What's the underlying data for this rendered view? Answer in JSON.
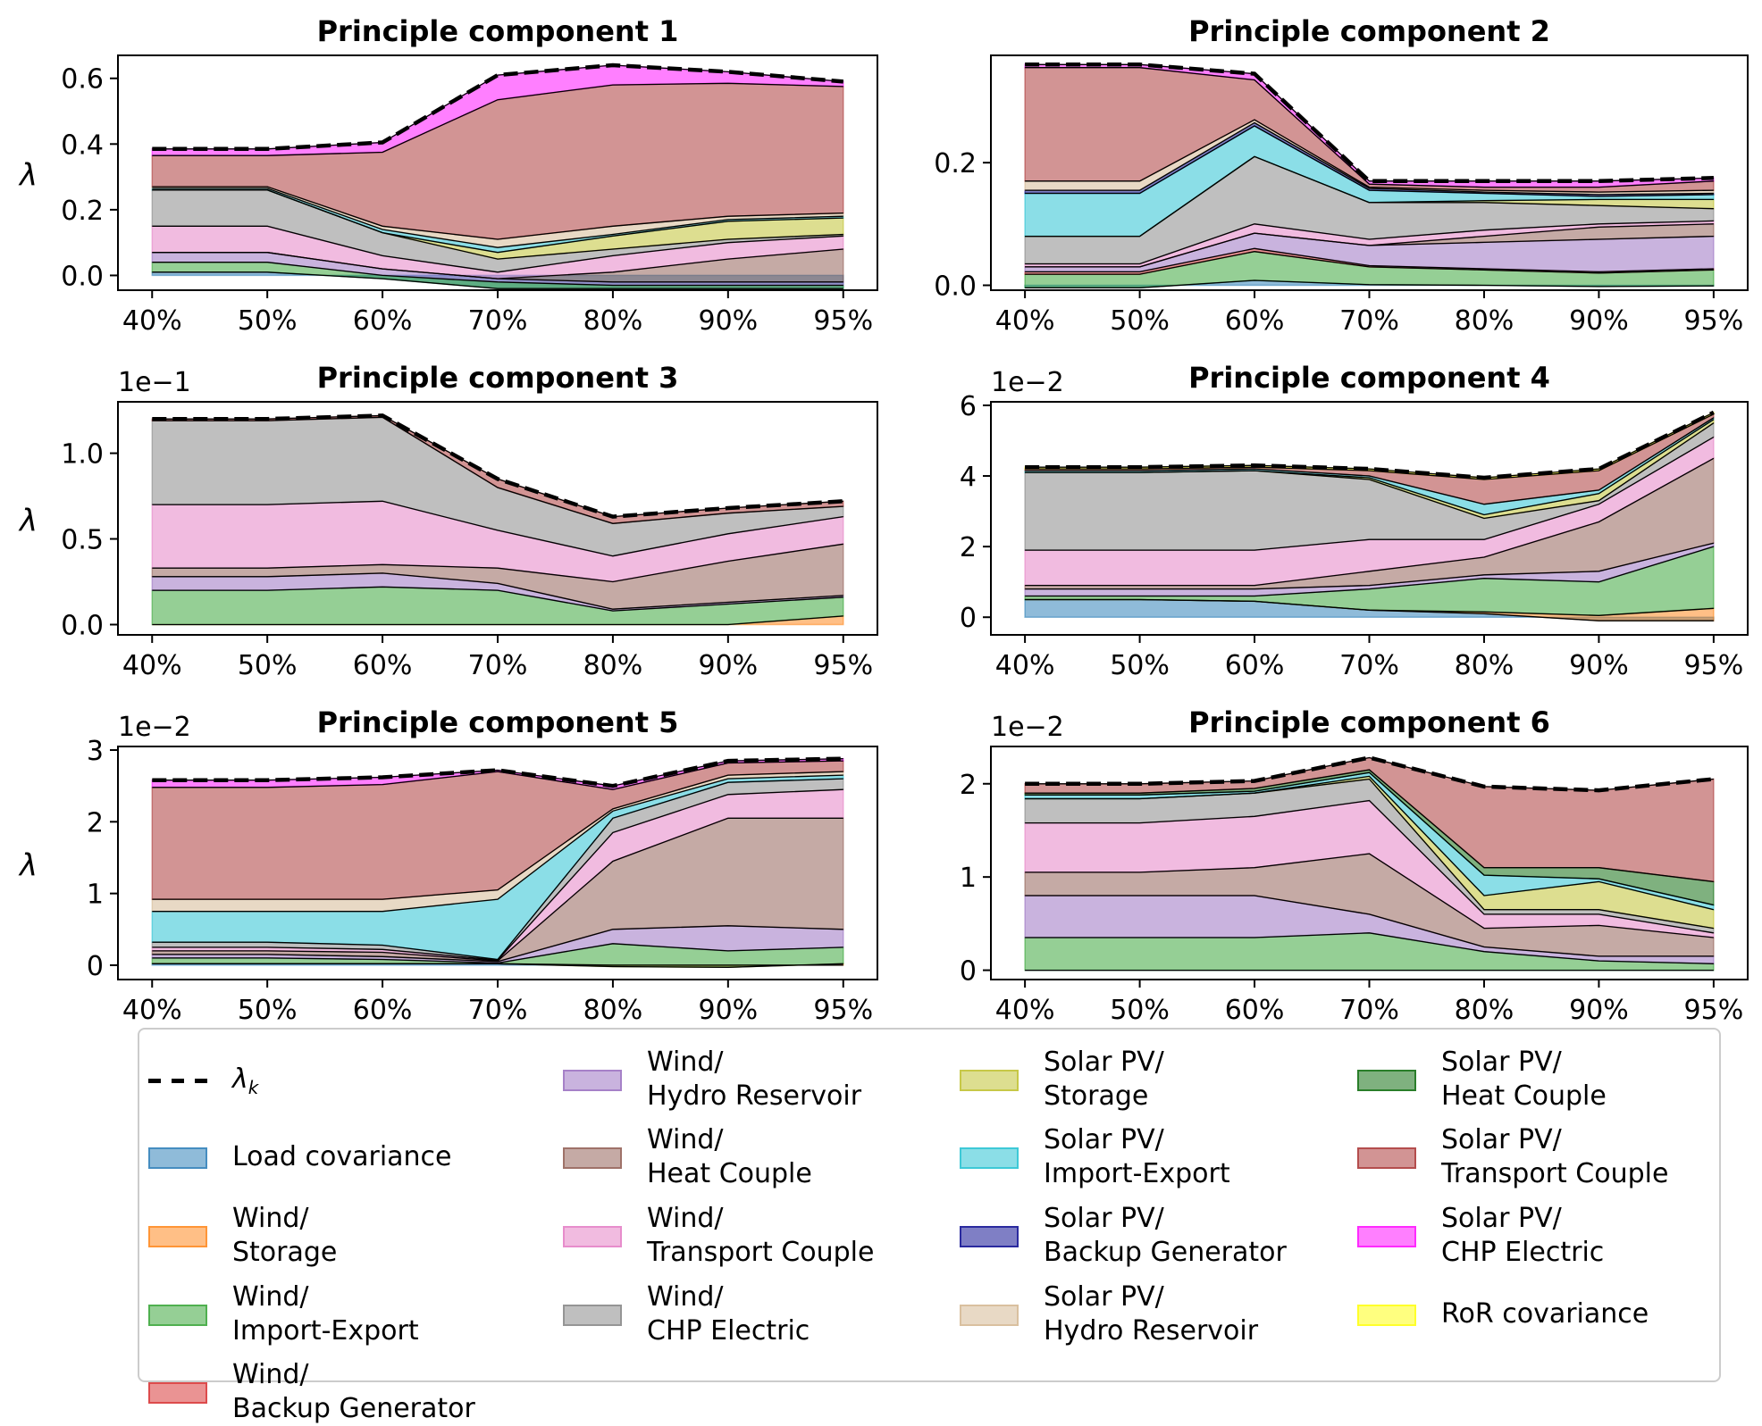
{
  "chart_data": [
    {
      "type": "area",
      "title": "Principle component 1",
      "ylabel": "λ",
      "offset_text": "",
      "categories": [
        "40%",
        "50%",
        "60%",
        "70%",
        "80%",
        "90%",
        "95%"
      ],
      "ylim": [
        -0.045,
        0.67
      ],
      "yticks": [
        0.0,
        0.2,
        0.4,
        0.6
      ],
      "ytick_labels": [
        "0.0",
        "0.2",
        "0.4",
        "0.6"
      ],
      "total": [
        0.385,
        0.385,
        0.405,
        0.61,
        0.64,
        0.62,
        0.59
      ],
      "boundaries": [
        {
          "series": "Load covariance",
          "values": [
            0.01,
            0.01,
            -0.01,
            -0.04,
            -0.04,
            -0.04,
            -0.04
          ]
        },
        {
          "series": "Wind/\nImport-Export",
          "values": [
            0.04,
            0.04,
            0.0,
            -0.02,
            -0.03,
            -0.03,
            -0.03
          ]
        },
        {
          "series": "Wind/\nHydro Reservoir",
          "values": [
            0.07,
            0.07,
            0.02,
            -0.01,
            -0.02,
            -0.02,
            -0.02
          ]
        },
        {
          "series": "Wind/\nHeat Couple",
          "values": [
            0.07,
            0.07,
            0.02,
            -0.01,
            0.01,
            0.05,
            0.08
          ]
        },
        {
          "series": "Wind/\nTransport Couple",
          "values": [
            0.15,
            0.15,
            0.06,
            0.01,
            0.06,
            0.1,
            0.12
          ]
        },
        {
          "series": "Wind/\nCHP Electric",
          "values": [
            0.26,
            0.26,
            0.13,
            0.05,
            0.08,
            0.11,
            0.125
          ]
        },
        {
          "series": "Solar PV/\nStorage",
          "values": [
            0.26,
            0.26,
            0.13,
            0.07,
            0.12,
            0.165,
            0.175
          ]
        },
        {
          "series": "Solar PV/\nImport-Export",
          "values": [
            0.265,
            0.265,
            0.14,
            0.085,
            0.125,
            0.17,
            0.18
          ]
        },
        {
          "series": "Solar PV/\nHydro Reservoir",
          "values": [
            0.27,
            0.27,
            0.15,
            0.11,
            0.15,
            0.18,
            0.19
          ]
        },
        {
          "series": "Solar PV/\nTransport Couple",
          "values": [
            0.365,
            0.365,
            0.375,
            0.535,
            0.58,
            0.585,
            0.575
          ]
        },
        {
          "series": "Solar PV/\nCHP Electric",
          "values": [
            0.385,
            0.385,
            0.405,
            0.61,
            0.64,
            0.62,
            0.59
          ]
        }
      ]
    },
    {
      "type": "area",
      "title": "Principle component 2",
      "ylabel": "",
      "offset_text": "",
      "categories": [
        "40%",
        "50%",
        "60%",
        "70%",
        "80%",
        "90%",
        "95%"
      ],
      "ylim": [
        -0.008,
        0.375
      ],
      "yticks": [
        0.0,
        0.2
      ],
      "ytick_labels": [
        "0.0",
        "0.2"
      ],
      "total": [
        0.36,
        0.36,
        0.345,
        0.17,
        0.17,
        0.17,
        0.175
      ],
      "boundaries": [
        {
          "series": "Load covariance",
          "values": [
            -0.004,
            -0.004,
            0.008,
            0.001,
            0.0,
            -0.002,
            -0.001
          ]
        },
        {
          "series": "Wind/\nImport-Export",
          "values": [
            0.018,
            0.018,
            0.055,
            0.03,
            0.025,
            0.02,
            0.025
          ]
        },
        {
          "series": "Wind/\nBackup Generator",
          "values": [
            0.022,
            0.022,
            0.06,
            0.032,
            0.027,
            0.022,
            0.027
          ]
        },
        {
          "series": "Wind/\nHydro Reservoir",
          "values": [
            0.03,
            0.03,
            0.085,
            0.065,
            0.07,
            0.075,
            0.08
          ]
        },
        {
          "series": "Wind/\nHeat Couple",
          "values": [
            0.03,
            0.03,
            0.085,
            0.065,
            0.08,
            0.095,
            0.1
          ]
        },
        {
          "series": "Wind/\nTransport Couple",
          "values": [
            0.035,
            0.035,
            0.1,
            0.075,
            0.09,
            0.1,
            0.105
          ]
        },
        {
          "series": "Wind/\nCHP Electric",
          "values": [
            0.08,
            0.08,
            0.21,
            0.135,
            0.135,
            0.13,
            0.125
          ]
        },
        {
          "series": "Solar PV/\nStorage",
          "values": [
            0.08,
            0.08,
            0.21,
            0.135,
            0.138,
            0.14,
            0.14
          ]
        },
        {
          "series": "Solar PV/\nImport-Export",
          "values": [
            0.15,
            0.15,
            0.26,
            0.155,
            0.15,
            0.145,
            0.148
          ]
        },
        {
          "series": "Solar PV/\nBackup Generator",
          "values": [
            0.155,
            0.155,
            0.265,
            0.158,
            0.152,
            0.148,
            0.15
          ]
        },
        {
          "series": "Solar PV/\nHydro Reservoir",
          "values": [
            0.17,
            0.17,
            0.27,
            0.16,
            0.155,
            0.152,
            0.155
          ]
        },
        {
          "series": "Solar PV/\nTransport Couple",
          "values": [
            0.355,
            0.355,
            0.335,
            0.165,
            0.16,
            0.16,
            0.17
          ]
        },
        {
          "series": "Solar PV/\nCHP Electric",
          "values": [
            0.36,
            0.36,
            0.345,
            0.17,
            0.17,
            0.17,
            0.175
          ]
        }
      ]
    },
    {
      "type": "area",
      "title": "Principle component 3",
      "ylabel": "λ",
      "offset_text": "1e−1",
      "categories": [
        "40%",
        "50%",
        "60%",
        "70%",
        "80%",
        "90%",
        "95%"
      ],
      "ylim": [
        -0.06,
        1.3
      ],
      "yticks": [
        0.0,
        0.5,
        1.0
      ],
      "ytick_labels": [
        "0.0",
        "0.5",
        "1.0"
      ],
      "total": [
        1.2,
        1.2,
        1.22,
        0.85,
        0.63,
        0.68,
        0.72
      ],
      "boundaries": [
        {
          "series": "Wind/\nStorage",
          "values": [
            0.0,
            0.0,
            0.0,
            0.0,
            0.0,
            0.0,
            0.05
          ]
        },
        {
          "series": "Wind/\nImport-Export",
          "values": [
            0.2,
            0.2,
            0.22,
            0.2,
            0.08,
            0.12,
            0.16
          ]
        },
        {
          "series": "Wind/\nHydro Reservoir",
          "values": [
            0.28,
            0.28,
            0.3,
            0.24,
            0.09,
            0.13,
            0.17
          ]
        },
        {
          "series": "Wind/\nHeat Couple",
          "values": [
            0.33,
            0.33,
            0.35,
            0.33,
            0.25,
            0.37,
            0.47
          ]
        },
        {
          "series": "Wind/\nTransport Couple",
          "values": [
            0.7,
            0.7,
            0.72,
            0.55,
            0.4,
            0.53,
            0.63
          ]
        },
        {
          "series": "Wind/\nCHP Electric",
          "values": [
            1.19,
            1.19,
            1.21,
            0.8,
            0.59,
            0.65,
            0.69
          ]
        },
        {
          "series": "Solar PV/\nTransport Couple",
          "values": [
            1.2,
            1.2,
            1.22,
            0.85,
            0.63,
            0.68,
            0.72
          ]
        }
      ]
    },
    {
      "type": "area",
      "title": "Principle component 4",
      "ylabel": "",
      "offset_text": "1e−2",
      "categories": [
        "40%",
        "50%",
        "60%",
        "70%",
        "80%",
        "90%",
        "95%"
      ],
      "ylim": [
        -0.5,
        6.1
      ],
      "yticks": [
        0,
        2,
        4,
        6
      ],
      "ytick_labels": [
        "0",
        "2",
        "4",
        "6"
      ],
      "total": [
        4.25,
        4.25,
        4.3,
        4.2,
        3.95,
        4.2,
        5.8
      ],
      "boundaries": [
        {
          "series": "Load covariance",
          "values": [
            0.5,
            0.5,
            0.45,
            0.2,
            0.1,
            -0.1,
            -0.1
          ]
        },
        {
          "series": "Wind/\nStorage",
          "values": [
            0.5,
            0.5,
            0.45,
            0.2,
            0.15,
            0.05,
            0.25
          ]
        },
        {
          "series": "Wind/\nImport-Export",
          "values": [
            0.6,
            0.6,
            0.6,
            0.8,
            1.1,
            1.0,
            2.0
          ]
        },
        {
          "series": "Wind/\nHydro Reservoir",
          "values": [
            0.8,
            0.8,
            0.8,
            0.9,
            1.2,
            1.3,
            2.1
          ]
        },
        {
          "series": "Wind/\nHeat Couple",
          "values": [
            0.9,
            0.9,
            0.9,
            1.3,
            1.7,
            2.7,
            4.5
          ]
        },
        {
          "series": "Wind/\nTransport Couple",
          "values": [
            1.9,
            1.9,
            1.9,
            2.2,
            2.2,
            3.2,
            5.1
          ]
        },
        {
          "series": "Wind/\nCHP Electric",
          "values": [
            4.1,
            4.1,
            4.15,
            3.9,
            2.8,
            3.3,
            5.5
          ]
        },
        {
          "series": "Solar PV/\nStorage",
          "values": [
            4.1,
            4.1,
            4.15,
            3.95,
            2.9,
            3.5,
            5.6
          ]
        },
        {
          "series": "Solar PV/\nImport-Export",
          "values": [
            4.15,
            4.15,
            4.2,
            4.0,
            3.2,
            3.6,
            5.65
          ]
        },
        {
          "series": "Solar PV/\nTransport Couple",
          "values": [
            4.2,
            4.2,
            4.25,
            4.15,
            3.9,
            4.15,
            5.75
          ]
        },
        {
          "series": "RoR covariance",
          "values": [
            4.25,
            4.25,
            4.3,
            4.2,
            3.95,
            4.2,
            5.8
          ]
        }
      ]
    },
    {
      "type": "area",
      "title": "Principle component 5",
      "ylabel": "λ",
      "offset_text": "1e−2",
      "categories": [
        "40%",
        "50%",
        "60%",
        "70%",
        "80%",
        "90%",
        "95%"
      ],
      "ylim": [
        -0.2,
        3.05
      ],
      "yticks": [
        0,
        1,
        2,
        3
      ],
      "ytick_labels": [
        "0",
        "1",
        "2",
        "3"
      ],
      "total": [
        2.58,
        2.58,
        2.62,
        2.72,
        2.5,
        2.85,
        2.88
      ],
      "boundaries": [
        {
          "series": "Load covariance",
          "values": [
            0.02,
            0.02,
            0.02,
            0.02,
            0.0,
            0.0,
            0.0
          ]
        },
        {
          "series": "Wind/\nStorage",
          "values": [
            0.02,
            0.02,
            0.02,
            0.02,
            -0.02,
            -0.03,
            0.02
          ]
        },
        {
          "series": "Wind/\nImport-Export",
          "values": [
            0.1,
            0.1,
            0.08,
            0.03,
            0.3,
            0.2,
            0.25
          ]
        },
        {
          "series": "Wind/\nHydro Reservoir",
          "values": [
            0.15,
            0.15,
            0.12,
            0.05,
            0.5,
            0.55,
            0.5
          ]
        },
        {
          "series": "Wind/\nHeat Couple",
          "values": [
            0.2,
            0.2,
            0.18,
            0.06,
            1.45,
            2.05,
            2.05
          ]
        },
        {
          "series": "Wind/\nTransport Couple",
          "values": [
            0.25,
            0.25,
            0.22,
            0.07,
            1.85,
            2.38,
            2.45
          ]
        },
        {
          "series": "Wind/\nCHP Electric",
          "values": [
            0.32,
            0.32,
            0.28,
            0.08,
            2.05,
            2.55,
            2.6
          ]
        },
        {
          "series": "Solar PV/\nImport-Export",
          "values": [
            0.75,
            0.75,
            0.75,
            0.92,
            2.15,
            2.6,
            2.65
          ]
        },
        {
          "series": "Solar PV/\nHydro Reservoir",
          "values": [
            0.92,
            0.92,
            0.92,
            1.05,
            2.18,
            2.65,
            2.7
          ]
        },
        {
          "series": "Solar PV/\nTransport Couple",
          "values": [
            2.48,
            2.48,
            2.52,
            2.7,
            2.45,
            2.82,
            2.85
          ]
        },
        {
          "series": "Solar PV/\nCHP Electric",
          "values": [
            2.58,
            2.58,
            2.62,
            2.72,
            2.5,
            2.85,
            2.88
          ]
        }
      ]
    },
    {
      "type": "area",
      "title": "Principle component 6",
      "ylabel": "",
      "offset_text": "1e−2",
      "categories": [
        "40%",
        "50%",
        "60%",
        "70%",
        "80%",
        "90%",
        "95%"
      ],
      "ylim": [
        -0.1,
        2.4
      ],
      "yticks": [
        0,
        1,
        2
      ],
      "ytick_labels": [
        "0",
        "1",
        "2"
      ],
      "total": [
        2.0,
        2.0,
        2.03,
        2.28,
        1.97,
        1.93,
        2.05
      ],
      "boundaries": [
        {
          "series": "Load covariance",
          "values": [
            0.0,
            0.0,
            0.0,
            0.0,
            0.0,
            0.0,
            0.0
          ]
        },
        {
          "series": "Wind/\nImport-Export",
          "values": [
            0.35,
            0.35,
            0.35,
            0.4,
            0.2,
            0.1,
            0.07
          ]
        },
        {
          "series": "Wind/\nHydro Reservoir",
          "values": [
            0.8,
            0.8,
            0.8,
            0.6,
            0.25,
            0.15,
            0.15
          ]
        },
        {
          "series": "Wind/\nHeat Couple",
          "values": [
            1.05,
            1.05,
            1.1,
            1.25,
            0.45,
            0.48,
            0.35
          ]
        },
        {
          "series": "Wind/\nTransport Couple",
          "values": [
            1.58,
            1.58,
            1.65,
            1.82,
            0.6,
            0.6,
            0.4
          ]
        },
        {
          "series": "Wind/\nCHP Electric",
          "values": [
            1.84,
            1.84,
            1.9,
            2.05,
            0.65,
            0.65,
            0.45
          ]
        },
        {
          "series": "Solar PV/\nStorage",
          "values": [
            1.84,
            1.84,
            1.9,
            2.08,
            0.8,
            0.95,
            0.65
          ]
        },
        {
          "series": "Solar PV/\nImport-Export",
          "values": [
            1.88,
            1.88,
            1.92,
            2.12,
            1.02,
            0.98,
            0.7
          ]
        },
        {
          "series": "Solar PV/\nHeat Couple",
          "values": [
            1.9,
            1.9,
            1.95,
            2.15,
            1.1,
            1.1,
            0.95
          ]
        },
        {
          "series": "Solar PV/\nTransport Couple",
          "values": [
            2.0,
            2.0,
            2.03,
            2.28,
            1.97,
            1.93,
            2.05
          ]
        }
      ]
    }
  ],
  "legend": [
    {
      "label": "λ",
      "sub": "k",
      "kind": "dash",
      "col": 0,
      "row": 0
    },
    {
      "label": "Load covariance",
      "color": "#1f77b4",
      "col": 0,
      "row": 1
    },
    {
      "label": "Wind/\nStorage",
      "color": "#ff7f0e",
      "col": 0,
      "row": 2
    },
    {
      "label": "Wind/\nImport-Export",
      "color": "#2ca02c",
      "col": 0,
      "row": 3
    },
    {
      "label": "Wind/\nBackup Generator",
      "color": "#d62728",
      "col": 0,
      "row": 4
    },
    {
      "label": "Wind/\nHydro Reservoir",
      "color": "#9467bd",
      "col": 1,
      "row": 0
    },
    {
      "label": "Wind/\nHeat Couple",
      "color": "#8c564b",
      "col": 1,
      "row": 1
    },
    {
      "label": "Wind/\nTransport Couple",
      "color": "#e377c2",
      "col": 1,
      "row": 2
    },
    {
      "label": "Wind/\nCHP Electric",
      "color": "#7f7f7f",
      "col": 1,
      "row": 3
    },
    {
      "label": "Solar PV/\nStorage",
      "color": "#bcbd22",
      "col": 2,
      "row": 0
    },
    {
      "label": "Solar PV/\nImport-Export",
      "color": "#17becf",
      "col": 2,
      "row": 1
    },
    {
      "label": "Solar PV/\nBackup Generator",
      "color": "#00008b",
      "col": 2,
      "row": 2
    },
    {
      "label": "Solar PV/\nHydro Reservoir",
      "color": "#d2b48c",
      "col": 2,
      "row": 3
    },
    {
      "label": "Solar PV/\nHeat Couple",
      "color": "#006400",
      "col": 3,
      "row": 0
    },
    {
      "label": "Solar PV/\nTransport Couple",
      "color": "#a52a2a",
      "col": 3,
      "row": 1
    },
    {
      "label": "Solar PV/\nCHP Electric",
      "color": "#ff00ff",
      "col": 3,
      "row": 2
    },
    {
      "label": "RoR covariance",
      "color": "#ffff00",
      "col": 3,
      "row": 3
    }
  ]
}
